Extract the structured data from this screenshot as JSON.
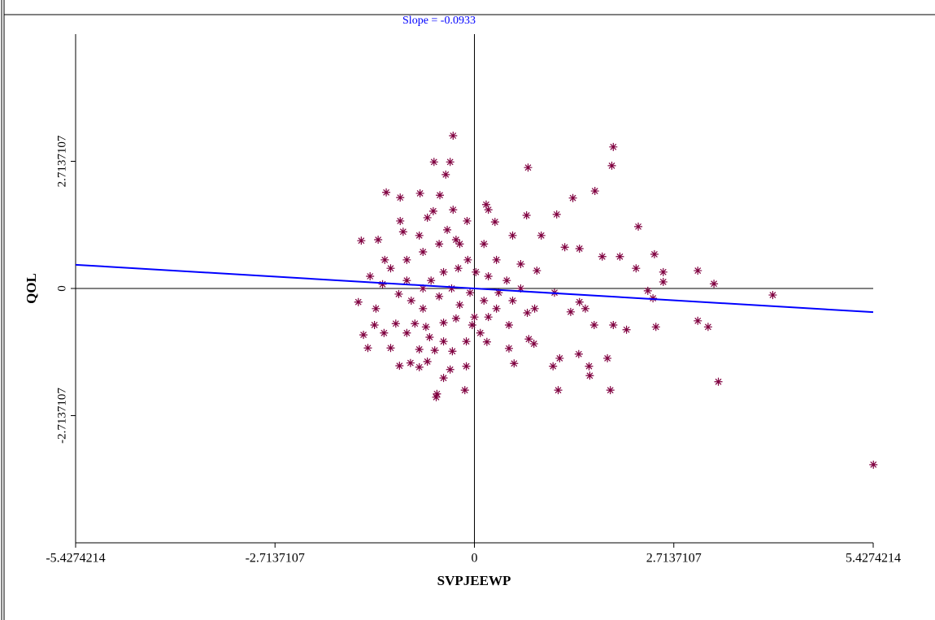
{
  "chart_data": {
    "type": "scatter",
    "title": "Slope = -0.0933",
    "x_label": "SVPJEEWP",
    "y_label": "QOL",
    "xlim": [
      -5.4274214,
      5.4274214
    ],
    "ylim": [
      -5.4274214,
      5.4274214
    ],
    "xticks": [
      -5.4274214,
      -2.7137107,
      0,
      2.7137107,
      5.4274214
    ],
    "yticks": [
      -2.7137107,
      0,
      2.7137107
    ],
    "grid": false,
    "series": [
      {
        "color": "#800040",
        "x": [
          -0.29,
          1.89,
          1.87,
          -0.55,
          -0.33,
          0.73,
          -0.39,
          1.64,
          -1.2,
          1.34,
          -1.01,
          -0.74,
          -0.47,
          0.16,
          0.19,
          1.12,
          0.71,
          -0.56,
          -0.29,
          2.23,
          -1.31,
          -1.54,
          -1.01,
          0.28,
          -0.1,
          0.52,
          0.91,
          1.23,
          1.43,
          1.74,
          1.98,
          2.45,
          2.2,
          2.57,
          3.04,
          2.57,
          3.26,
          4.06,
          2.36,
          2.43,
          3.04,
          3.18,
          2.47,
          2.07,
          1.89,
          1.63,
          1.81,
          1.56,
          1.57,
          1.42,
          1.85,
          1.14,
          1.16,
          1.07,
          3.32,
          5.43,
          0.54,
          0.81,
          0.74,
          0.47,
          0.47,
          0.82,
          1.31,
          1.43,
          1.51,
          1.09,
          0.63,
          0.85,
          0.44,
          0.19,
          0.33,
          0.13,
          0.19,
          0.0,
          0.08,
          0.17,
          -0.11,
          -0.11,
          -0.13,
          -0.33,
          -0.42,
          -0.51,
          -0.52,
          -0.75,
          -0.64,
          -0.87,
          -1.02,
          -0.75,
          -0.54,
          -0.3,
          -1.14,
          -1.45,
          -1.23,
          -1.36,
          -1.58,
          -1.34,
          -1.51,
          -1.07,
          -0.92,
          -0.66,
          -0.42,
          -0.25,
          -0.7,
          -0.86,
          -1.03,
          -1.25,
          -1.14,
          -0.92,
          -0.7,
          -0.48,
          -0.25,
          -0.09,
          -0.42,
          -0.59,
          -0.31,
          -0.48,
          -0.7,
          -0.92,
          -0.2,
          -0.06,
          0.02,
          -0.22,
          -1.22,
          -1.42,
          -0.97,
          -0.75,
          -0.64,
          -0.37,
          -0.2,
          0.13,
          0.3,
          0.63,
          0.72,
          0.52,
          0.3,
          -0.42,
          -0.61,
          -0.81,
          -0.03
        ],
        "y": [
          3.26,
          3.02,
          2.62,
          2.7,
          2.7,
          2.58,
          2.43,
          2.08,
          2.05,
          1.93,
          1.94,
          2.03,
          1.99,
          1.79,
          1.68,
          1.58,
          1.56,
          1.65,
          1.68,
          1.32,
          1.04,
          1.02,
          1.44,
          1.42,
          1.44,
          1.13,
          1.13,
          0.88,
          0.85,
          0.68,
          0.68,
          0.73,
          0.43,
          0.35,
          0.38,
          0.14,
          0.1,
          -0.14,
          -0.05,
          -0.21,
          -0.69,
          -0.82,
          -0.82,
          -0.88,
          -0.78,
          -0.78,
          -1.49,
          -1.66,
          -1.86,
          -1.4,
          -2.17,
          -2.17,
          -1.49,
          -1.66,
          -1.99,
          -3.76,
          -1.6,
          -1.18,
          -1.08,
          -1.28,
          -0.78,
          -0.43,
          -0.5,
          -0.29,
          -0.43,
          -0.09,
          0.0,
          0.38,
          0.17,
          0.26,
          -0.09,
          -0.26,
          -0.61,
          -0.61,
          -0.95,
          -1.14,
          -1.13,
          -1.66,
          -2.17,
          -1.73,
          -1.91,
          -2.25,
          -2.32,
          -1.68,
          -1.56,
          -1.59,
          -1.65,
          -1.3,
          -1.32,
          -1.34,
          -1.27,
          -1.27,
          -0.95,
          -0.78,
          -0.29,
          -0.43,
          -0.99,
          -0.75,
          -0.95,
          -0.82,
          -0.73,
          -0.64,
          -0.43,
          -0.26,
          -0.12,
          0.09,
          0.43,
          0.61,
          0.78,
          0.95,
          1.04,
          0.61,
          0.35,
          0.17,
          0.0,
          -0.17,
          0.0,
          0.17,
          -0.35,
          -0.09,
          0.35,
          0.43,
          0.61,
          0.26,
          1.21,
          1.13,
          1.51,
          1.25,
          0.95,
          0.95,
          0.61,
          0.52,
          -0.52,
          -0.26,
          -0.43,
          -1.13,
          -1.04,
          -0.75,
          -0.78
        ]
      }
    ],
    "regression_line": {
      "color": "#0000ff",
      "x": [
        -5.4274214,
        5.4274214
      ],
      "y": [
        0.506,
        -0.506
      ]
    }
  }
}
